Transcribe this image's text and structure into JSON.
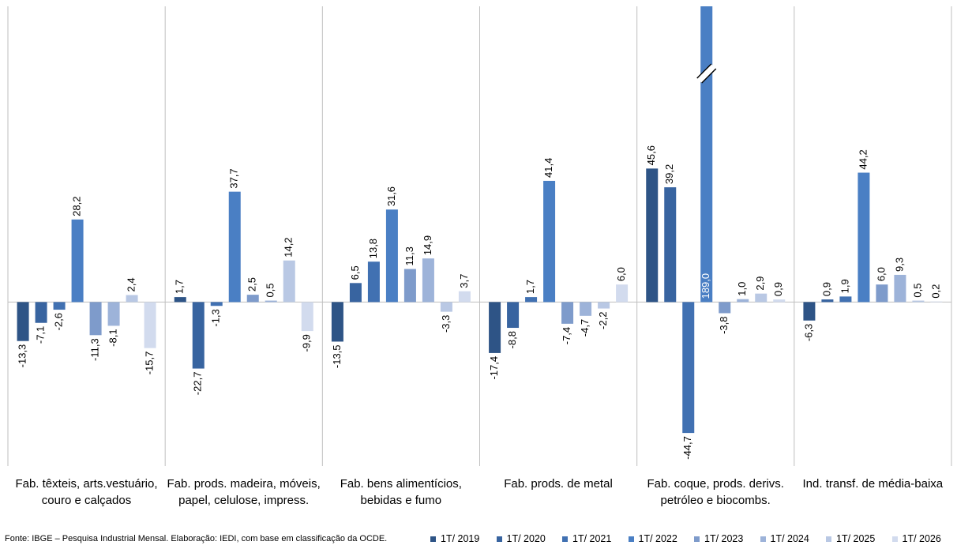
{
  "chart_data": {
    "type": "bar",
    "categories": [
      "Fab. têxteis, arts.vestuário, couro e calçados",
      "Fab. prods. madeira, móveis, papel, celulose, impress.",
      "Fab. bens alimentícios, bebidas e fumo",
      "Fab. prods. de metal",
      "Fab. coque, prods. derivs. petróleo e biocombs.",
      "Ind. transf. de média-baixa"
    ],
    "series": [
      {
        "name": "1T/ 2019",
        "color": "#2e5486",
        "values": [
          -13.3,
          1.7,
          -13.5,
          -17.4,
          45.6,
          -6.3
        ],
        "value_labels": [
          "-13,3",
          "1,7",
          "-13,5",
          "-17,4",
          "45,6",
          "-6,3"
        ]
      },
      {
        "name": "1T/ 2020",
        "color": "#3864a0",
        "values": [
          -7.1,
          -22.7,
          6.5,
          -8.8,
          39.2,
          0.9
        ],
        "value_labels": [
          "-7,1",
          "-22,7",
          "6,5",
          "-8,8",
          "39,2",
          "0,9"
        ]
      },
      {
        "name": "1T/ 2021",
        "color": "#4171b2",
        "values": [
          -2.6,
          -1.3,
          13.8,
          1.7,
          -44.7,
          1.9
        ],
        "value_labels": [
          "-2,6",
          "-1,3",
          "13,8",
          "1,7",
          "-44,7",
          "1,9"
        ]
      },
      {
        "name": "1T/ 2022",
        "color": "#4a7fc4",
        "values": [
          28.2,
          37.7,
          31.6,
          41.4,
          189.0,
          44.2
        ],
        "value_labels": [
          "28,2",
          "37,7",
          "31,6",
          "41,4",
          "189,0",
          "44,2"
        ]
      },
      {
        "name": "1T/ 2023",
        "color": "#7e9bcb",
        "values": [
          -11.3,
          2.5,
          11.3,
          -7.4,
          -3.8,
          6.0
        ],
        "value_labels": [
          "-11,3",
          "2,5",
          "11,3",
          "-7,4",
          "-3,8",
          "6,0"
        ]
      },
      {
        "name": "1T/ 2024",
        "color": "#9db3d9",
        "values": [
          -8.1,
          0.5,
          14.9,
          -4.7,
          1.0,
          9.3
        ],
        "value_labels": [
          "-8,1",
          "0,5",
          "14,9",
          "-4,7",
          "1,0",
          "9,3"
        ]
      },
      {
        "name": "1T/ 2025",
        "color": "#b9c8e4",
        "values": [
          2.4,
          14.2,
          -3.3,
          -2.2,
          2.9,
          0.5
        ],
        "value_labels": [
          "2,4",
          "14,2",
          "-3,3",
          "-2,2",
          "2,9",
          "0,5"
        ]
      },
      {
        "name": "1T/ 2026",
        "color": "#d2dbee",
        "values": [
          -15.7,
          -9.9,
          3.7,
          6.0,
          0.9,
          0.2
        ],
        "value_labels": [
          "-15,7",
          "-9,9",
          "3,7",
          "6,0",
          "0,9",
          "0,2"
        ]
      }
    ],
    "ylim": [
      -56,
      101
    ],
    "source": "Fonte: IBGE – Pesquisa Industrial Mensal. Elaboração: IEDI, com base em classificação da OCDE."
  }
}
